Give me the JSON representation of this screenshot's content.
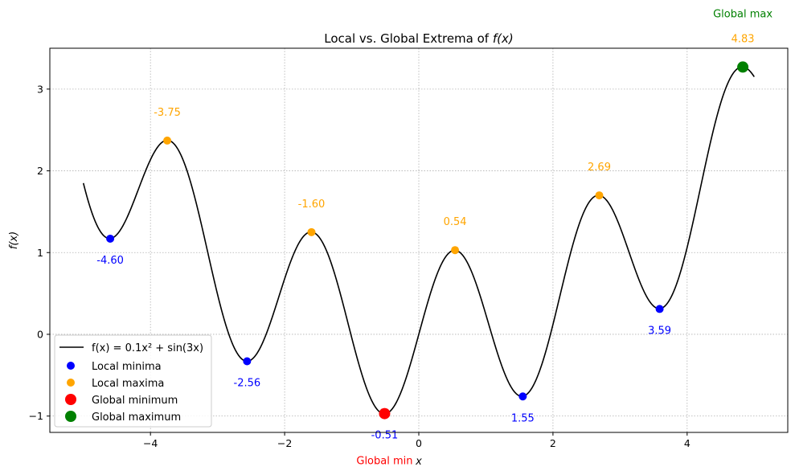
{
  "chart_data": {
    "type": "line",
    "title": "Local vs. Global Extrema of f(x)",
    "title_prefix": "Local vs. Global Extrema of ",
    "title_math": "f(x)",
    "xlabel": "x",
    "ylabel": "f(x)",
    "xlim": [
      -5.5,
      5.5
    ],
    "ylim": [
      -1.2,
      3.5
    ],
    "xticks": [
      -4,
      -2,
      0,
      2,
      4
    ],
    "yticks": [
      -1,
      0,
      1,
      2,
      3
    ],
    "xtick_labels": [
      "−4",
      "−2",
      "0",
      "2",
      "4"
    ],
    "ytick_labels": [
      "−1",
      "0",
      "1",
      "2",
      "3"
    ],
    "grid": true,
    "legend_position": "lower-left",
    "function": {
      "label": "f(x) = 0.1x² + sin(3x)",
      "x_range": [
        -5,
        5
      ],
      "color": "#000000"
    },
    "local_minima": {
      "name": "Local minima",
      "color": "#0000ff",
      "points": [
        {
          "x": -4.6,
          "y": 1.17,
          "label": "-4.60"
        },
        {
          "x": -2.56,
          "y": -0.33,
          "label": "-2.56"
        },
        {
          "x": -0.51,
          "y": -0.97,
          "label": "-0.51"
        },
        {
          "x": 1.55,
          "y": -0.76,
          "label": "1.55"
        },
        {
          "x": 3.59,
          "y": 0.31,
          "label": "3.59"
        }
      ]
    },
    "local_maxima": {
      "name": "Local maxima",
      "color": "#ffa500",
      "points": [
        {
          "x": -3.75,
          "y": 2.37,
          "label": "-3.75"
        },
        {
          "x": -1.6,
          "y": 1.25,
          "label": "-1.60"
        },
        {
          "x": 0.54,
          "y": 1.03,
          "label": "0.54"
        },
        {
          "x": 2.69,
          "y": 1.7,
          "label": "2.69"
        },
        {
          "x": 4.83,
          "y": 3.27,
          "label": "4.83"
        }
      ]
    },
    "global_minimum": {
      "name": "Global minimum",
      "x": -0.51,
      "y": -0.97,
      "color": "#ff0000",
      "annotation": "Global min"
    },
    "global_maximum": {
      "name": "Global maximum",
      "x": 4.83,
      "y": 3.27,
      "color": "#008000",
      "annotation": "Global max"
    }
  }
}
